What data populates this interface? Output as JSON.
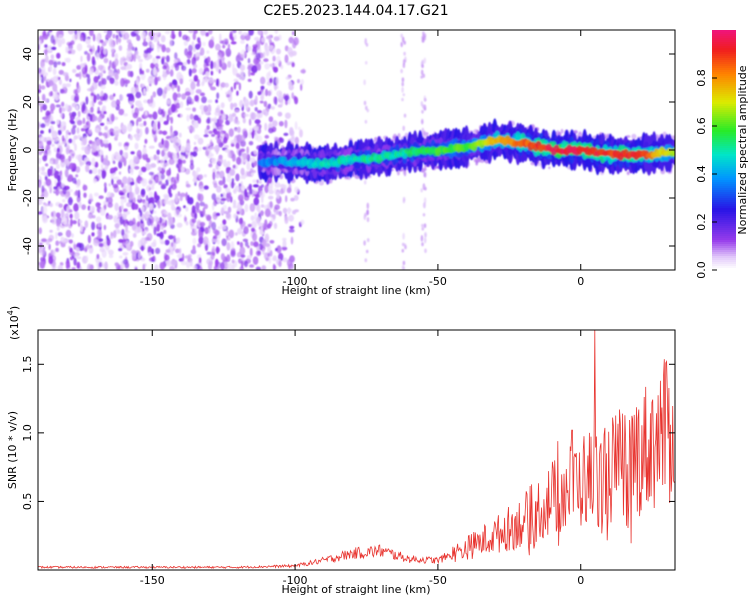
{
  "title": "C2E5.2023.144.04.17.G21",
  "colorbar": {
    "label": "Normalized spectral amplitude",
    "ticks": [
      "0.0",
      "0.2",
      "0.4",
      "0.6",
      "0.8"
    ],
    "range": [
      0,
      1
    ]
  },
  "chart_data": [
    {
      "type": "heatmap",
      "title": "",
      "xlabel": "Height of straight line (km)",
      "ylabel": "Frequency (Hz)",
      "xlim": [
        -190,
        33
      ],
      "ylim": [
        -50,
        50
      ],
      "xticks": [
        -150,
        -100,
        -50,
        0
      ],
      "yticks": [
        -40,
        -20,
        0,
        20,
        40
      ],
      "noise_region_x": [
        -190,
        -100
      ],
      "ridge_center": [
        [
          -110,
          -5
        ],
        [
          -100,
          -5
        ],
        [
          -90,
          -6
        ],
        [
          -80,
          -4
        ],
        [
          -70,
          -3
        ],
        [
          -60,
          -1
        ],
        [
          -50,
          0
        ],
        [
          -40,
          1
        ],
        [
          -30,
          4
        ],
        [
          -20,
          3
        ],
        [
          -10,
          0
        ],
        [
          0,
          0
        ],
        [
          10,
          -2
        ],
        [
          20,
          -2
        ],
        [
          30,
          -1
        ]
      ],
      "ridge_peak_amplitude": [
        [
          -110,
          0.35
        ],
        [
          -100,
          0.42
        ],
        [
          -90,
          0.48
        ],
        [
          -80,
          0.5
        ],
        [
          -70,
          0.5
        ],
        [
          -60,
          0.52
        ],
        [
          -50,
          0.58
        ],
        [
          -40,
          0.6
        ],
        [
          -30,
          0.75
        ],
        [
          -20,
          0.85
        ],
        [
          -10,
          0.95
        ],
        [
          0,
          0.95
        ],
        [
          10,
          0.9
        ],
        [
          20,
          0.92
        ],
        [
          30,
          0.7
        ]
      ]
    },
    {
      "type": "line",
      "title": "",
      "xlabel": "Height of straight line (km)",
      "ylabel": "SNR (10 * v/v)",
      "yscale_label": "(x10",
      "yscale_exp": "4",
      "yscale_close": ")",
      "xlim": [
        -190,
        33
      ],
      "ylim": [
        0,
        1.75
      ],
      "xticks": [
        -150,
        -100,
        -50,
        0
      ],
      "yticks": [
        0.5,
        1.0,
        1.5
      ],
      "ytick_labels": [
        "0.5",
        "1.0",
        "1.5"
      ],
      "color": "#e8342f",
      "envelope": [
        [
          -190,
          0.02
        ],
        [
          -120,
          0.02
        ],
        [
          -100,
          0.03
        ],
        [
          -90,
          0.07
        ],
        [
          -80,
          0.12
        ],
        [
          -70,
          0.14
        ],
        [
          -60,
          0.08
        ],
        [
          -50,
          0.07
        ],
        [
          -40,
          0.16
        ],
        [
          -30,
          0.25
        ],
        [
          -20,
          0.36
        ],
        [
          -10,
          0.52
        ],
        [
          0,
          0.65
        ],
        [
          10,
          0.72
        ],
        [
          20,
          0.85
        ],
        [
          33,
          1.05
        ]
      ],
      "peaks": [
        [
          5,
          1.75
        ],
        [
          -8,
          0.94
        ],
        [
          -3,
          1.02
        ],
        [
          30,
          1.52
        ]
      ]
    }
  ]
}
